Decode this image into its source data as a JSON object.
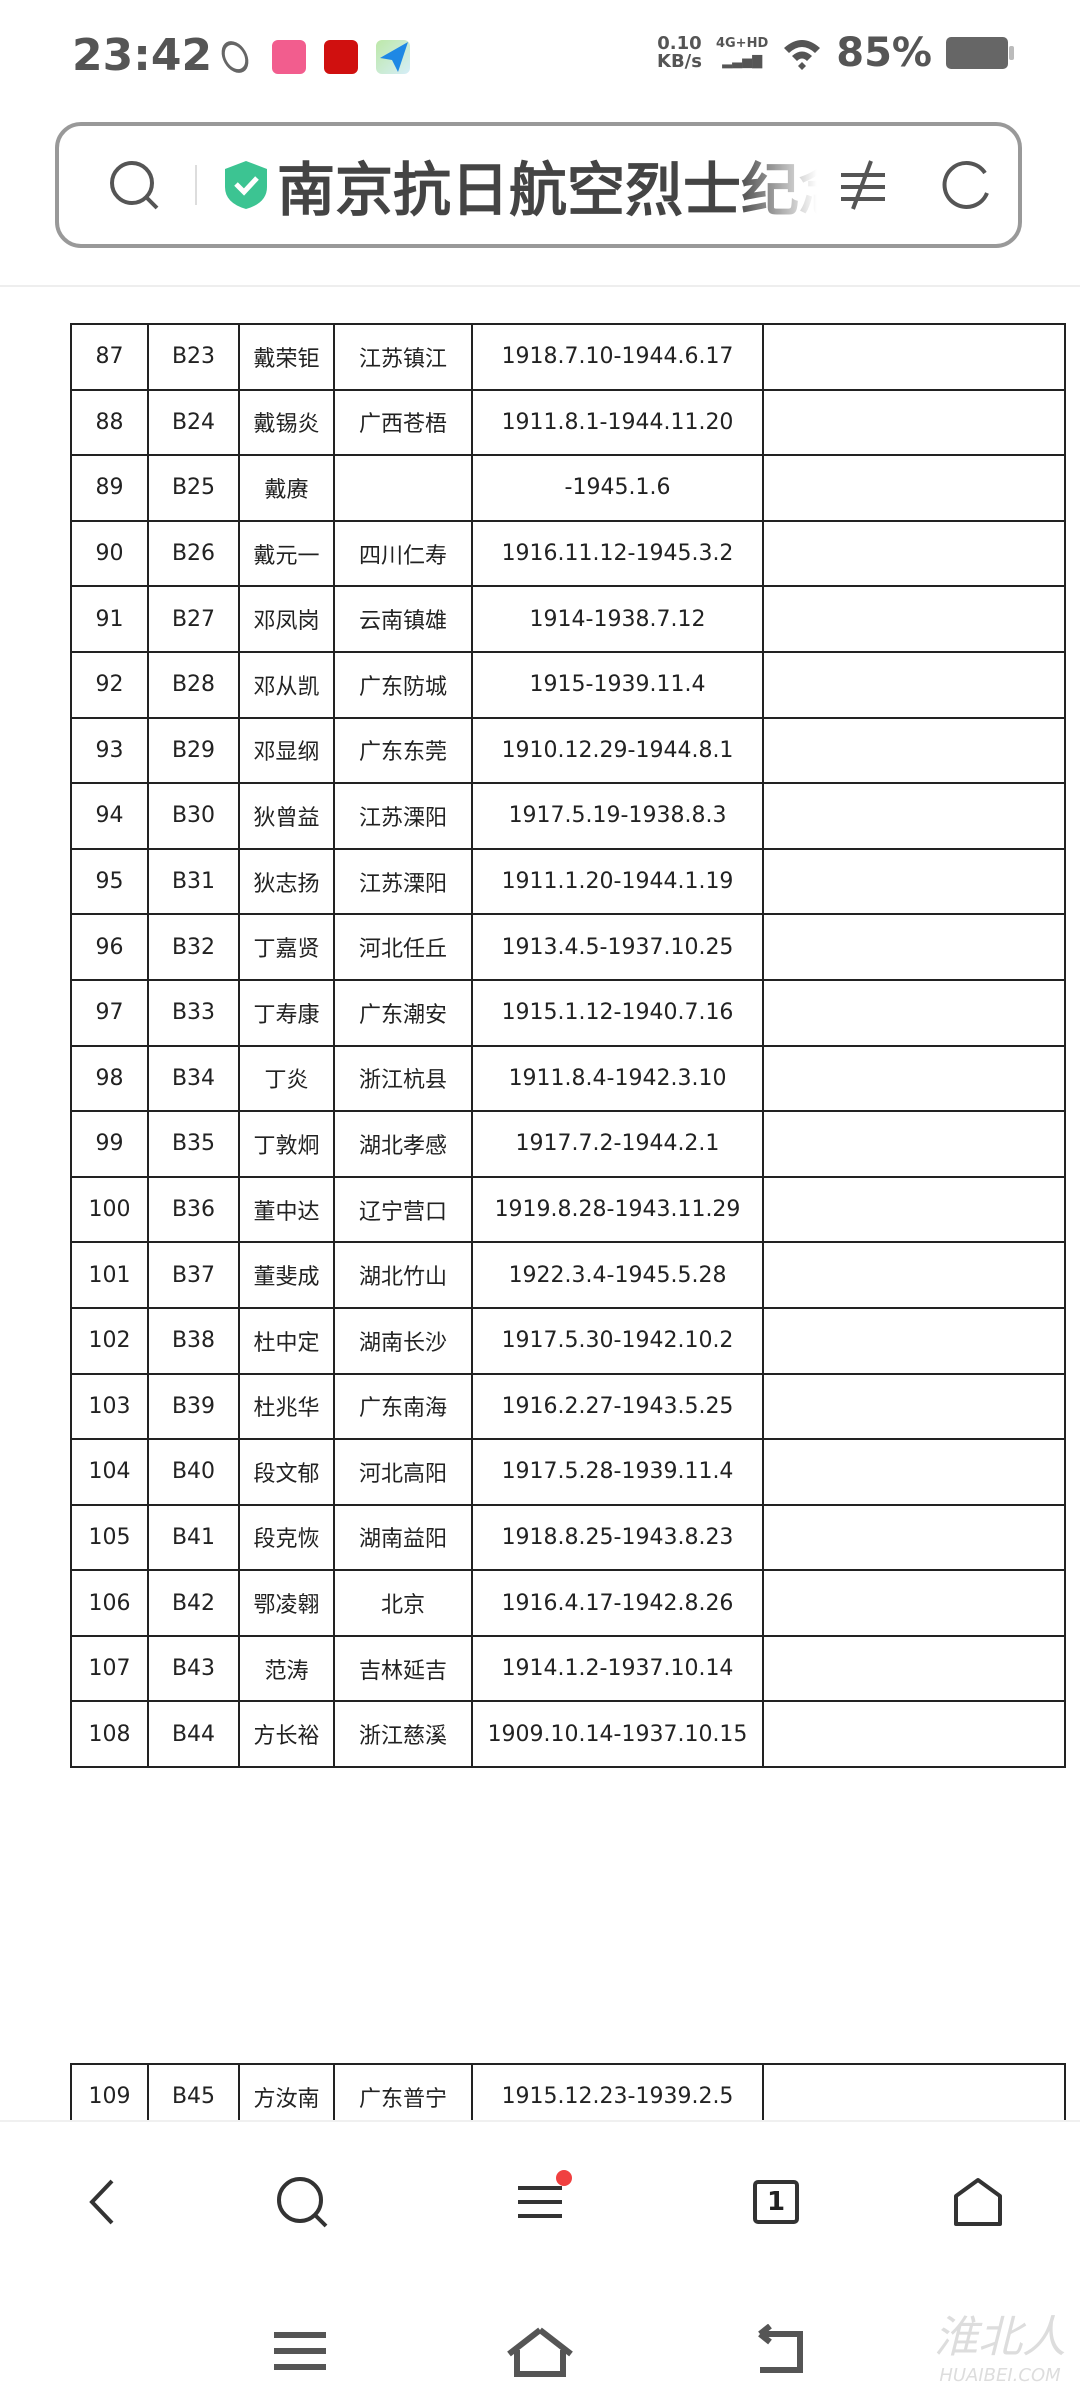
{
  "status_bar": {
    "time": "23:42",
    "net_speed_value": "0.10",
    "net_speed_unit": "KB/s",
    "network": "4G+HD",
    "battery": "85%",
    "app_icons": [
      "orbit-icon",
      "bilibili-icon",
      "xuexi-icon",
      "paper-plane-icon"
    ]
  },
  "address_bar": {
    "title": "南京抗日航空烈士纪念馆",
    "secure": true,
    "accent": "#3cc492"
  },
  "table": {
    "rows": [
      [
        "87",
        "B23",
        "戴荣钜",
        "江苏镇江",
        "1918.7.10-1944.6.17",
        ""
      ],
      [
        "88",
        "B24",
        "戴锡炎",
        "广西苍梧",
        "1911.8.1-1944.11.20",
        ""
      ],
      [
        "89",
        "B25",
        "戴赓",
        "",
        "-1945.1.6",
        ""
      ],
      [
        "90",
        "B26",
        "戴元一",
        "四川仁寿",
        "1916.11.12-1945.3.2",
        ""
      ],
      [
        "91",
        "B27",
        "邓凤岗",
        "云南镇雄",
        "1914-1938.7.12",
        ""
      ],
      [
        "92",
        "B28",
        "邓从凯",
        "广东防城",
        "1915-1939.11.4",
        ""
      ],
      [
        "93",
        "B29",
        "邓显纲",
        "广东东莞",
        "1910.12.29-1944.8.1",
        ""
      ],
      [
        "94",
        "B30",
        "狄曾益",
        "江苏溧阳",
        "1917.5.19-1938.8.3",
        ""
      ],
      [
        "95",
        "B31",
        "狄志扬",
        "江苏溧阳",
        "1911.1.20-1944.1.19",
        ""
      ],
      [
        "96",
        "B32",
        "丁嘉贤",
        "河北任丘",
        "1913.4.5-1937.10.25",
        ""
      ],
      [
        "97",
        "B33",
        "丁寿康",
        "广东潮安",
        "1915.1.12-1940.7.16",
        ""
      ],
      [
        "98",
        "B34",
        "丁炎",
        "浙江杭县",
        "1911.8.4-1942.3.10",
        ""
      ],
      [
        "99",
        "B35",
        "丁敦炯",
        "湖北孝感",
        "1917.7.2-1944.2.1",
        ""
      ],
      [
        "100",
        "B36",
        "董中达",
        "辽宁营口",
        "1919.8.28-1943.11.29",
        ""
      ],
      [
        "101",
        "B37",
        "董斐成",
        "湖北竹山",
        "1922.3.4-1945.5.28",
        ""
      ],
      [
        "102",
        "B38",
        "杜中定",
        "湖南长沙",
        "1917.5.30-1942.10.2",
        ""
      ],
      [
        "103",
        "B39",
        "杜兆华",
        "广东南海",
        "1916.2.27-1943.5.25",
        ""
      ],
      [
        "104",
        "B40",
        "段文郁",
        "河北高阳",
        "1917.5.28-1939.11.4",
        ""
      ],
      [
        "105",
        "B41",
        "段克恢",
        "湖南益阳",
        "1918.8.25-1943.8.23",
        ""
      ],
      [
        "106",
        "B42",
        "鄂凌翱",
        "北京",
        "1916.4.17-1942.8.26",
        ""
      ],
      [
        "107",
        "B43",
        "范涛",
        "吉林延吉",
        "1914.1.2-1937.10.14",
        ""
      ],
      [
        "108",
        "B44",
        "方长裕",
        "浙江慈溪",
        "1909.10.14-1937.10.15",
        ""
      ]
    ],
    "rows2": [
      [
        "109",
        "B45",
        "方汝南",
        "广东普宁",
        "1915.12.23-1939.2.5",
        ""
      ]
    ]
  },
  "bottom_nav": {
    "tab_count": "1",
    "menu_badge_color": "#f04040"
  },
  "watermark": {
    "text": "淮北人",
    "sub": "HUAIBEI.COM"
  }
}
